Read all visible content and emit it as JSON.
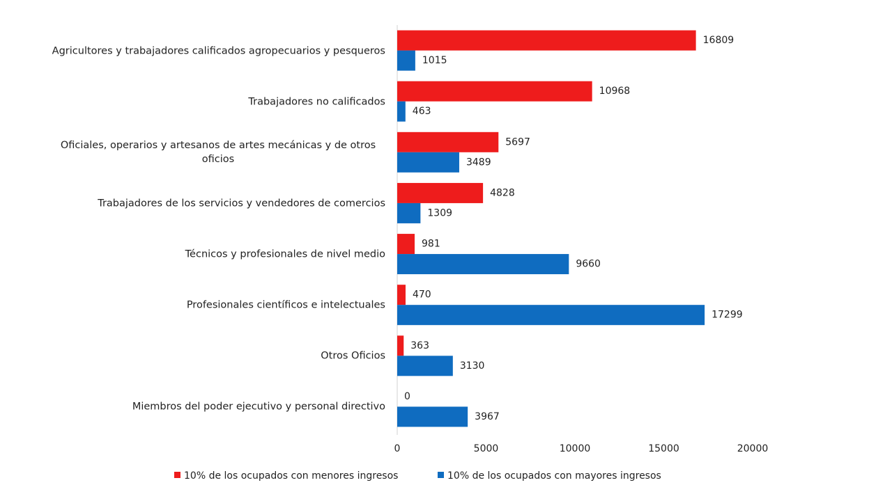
{
  "chart_data": {
    "type": "barh",
    "categories": [
      "Agricultores y trabajadores calificados agropecuarios y pesqueros",
      "Trabajadores no calificados",
      "Oficiales, operarios y artesanos de artes mecánicas y de otros oficios",
      "Trabajadores de los servicios y vendedores de comercios",
      "Técnicos y profesionales de nivel medio",
      "Profesionales científicos e intelectuales",
      "Otros Oficios",
      "Miembros del poder ejecutivo y personal directivo"
    ],
    "series": [
      {
        "name": "10% de los ocupados con menores ingresos",
        "color": "#ee1c1c",
        "values": [
          16809,
          10968,
          5697,
          4828,
          981,
          470,
          363,
          0
        ]
      },
      {
        "name": "10% de los ocupados con mayores ingresos",
        "color": "#0f6cc0",
        "values": [
          1015,
          463,
          3489,
          1309,
          9660,
          17299,
          3130,
          3967
        ]
      }
    ],
    "xlim": [
      0,
      20000
    ],
    "xticks": [
      0,
      5000,
      10000,
      15000,
      20000
    ],
    "legend": "bottom"
  }
}
